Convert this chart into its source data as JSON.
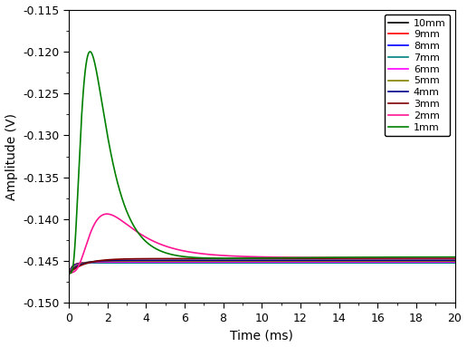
{
  "xlabel": "Time (ms)",
  "ylabel": "Amplitude (V)",
  "xlim": [
    0,
    20
  ],
  "ylim": [
    -0.15,
    -0.115
  ],
  "yticks": [
    -0.15,
    -0.145,
    -0.14,
    -0.135,
    -0.13,
    -0.125,
    -0.12,
    -0.115
  ],
  "xticks": [
    0,
    2,
    4,
    6,
    8,
    10,
    12,
    14,
    16,
    18,
    20
  ],
  "series_params": [
    {
      "label": "10mm",
      "color": "#000000",
      "final_val": -0.1452,
      "peak_time": null,
      "peak_val": null,
      "tau": 0.18
    },
    {
      "label": "9mm",
      "color": "#ff0000",
      "final_val": -0.1452,
      "peak_time": null,
      "peak_val": null,
      "tau": 0.2
    },
    {
      "label": "8mm",
      "color": "#0000ff",
      "final_val": -0.1452,
      "peak_time": null,
      "peak_val": null,
      "tau": 0.22
    },
    {
      "label": "7mm",
      "color": "#008080",
      "final_val": -0.1452,
      "peak_time": null,
      "peak_val": null,
      "tau": 0.26
    },
    {
      "label": "6mm",
      "color": "#ff00ff",
      "final_val": -0.1451,
      "peak_time": null,
      "peak_val": null,
      "tau": 0.32
    },
    {
      "label": "5mm",
      "color": "#808000",
      "final_val": -0.145,
      "peak_time": null,
      "peak_val": null,
      "tau": 0.4
    },
    {
      "label": "4mm",
      "color": "#00008b",
      "final_val": -0.1449,
      "peak_time": null,
      "peak_val": null,
      "tau": 0.55
    },
    {
      "label": "3mm",
      "color": "#800000",
      "final_val": -0.1447,
      "peak_time": null,
      "peak_val": null,
      "tau": 0.8
    },
    {
      "label": "2mm",
      "color": "#ff1493",
      "final_val": -0.1446,
      "peak_time": 1.9,
      "peak_val": -0.1385,
      "tau": 2.5
    },
    {
      "label": "1mm",
      "color": "#008000",
      "final_val": -0.1445,
      "peak_time": 1.1,
      "peak_val": -0.1185,
      "tau": 4.0
    }
  ],
  "init_val": -0.1465,
  "background_color": "#ffffff",
  "legend_fontsize": 8,
  "axis_fontsize": 10,
  "tick_fontsize": 9,
  "linewidth": 1.2
}
